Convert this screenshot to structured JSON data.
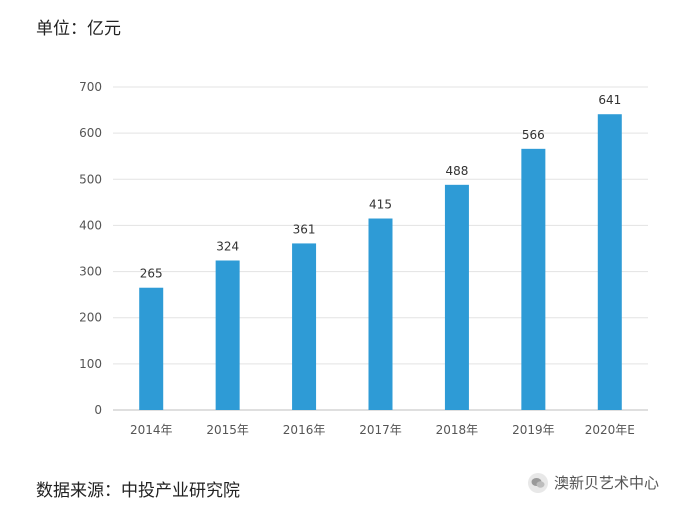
{
  "unit_label": "单位：亿元",
  "source_label": "数据来源：中投产业研究院",
  "watermark": {
    "icon": "wechat-icon",
    "text": "澳新贝艺术中心"
  },
  "chart_data": {
    "type": "bar",
    "title": "",
    "xlabel": "",
    "ylabel": "",
    "categories": [
      "2014年",
      "2015年",
      "2016年",
      "2017年",
      "2018年",
      "2019年",
      "2020年E"
    ],
    "values": [
      265,
      324,
      361,
      415,
      488,
      566,
      641
    ],
    "ylim": [
      0,
      700
    ],
    "yticks": [
      0,
      100,
      200,
      300,
      400,
      500,
      600,
      700
    ],
    "grid": true,
    "bar_color": "#2e9bd6"
  }
}
